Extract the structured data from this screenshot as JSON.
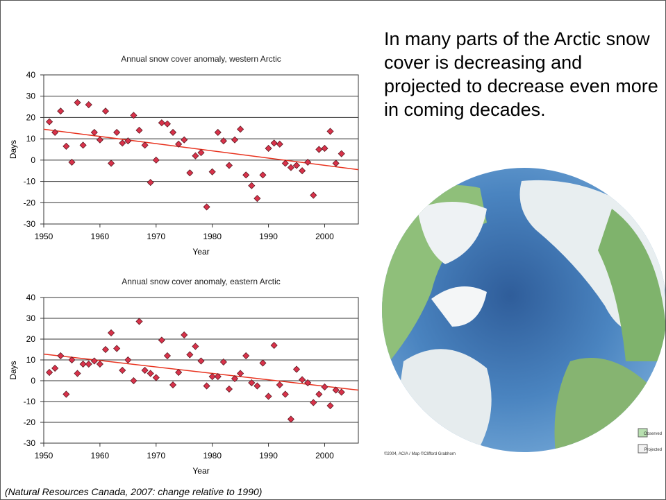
{
  "chart_data": [
    {
      "type": "scatter",
      "title": "Annual snow cover anomaly, western Arctic",
      "x_label": "Year",
      "y_label": "Days",
      "color": "#d9324a",
      "grid": true,
      "x": [
        1951,
        1952,
        1953,
        1954,
        1955,
        1956,
        1957,
        1958,
        1959,
        1960,
        1961,
        1962,
        1963,
        1964,
        1965,
        1966,
        1967,
        1968,
        1969,
        1970,
        1971,
        1972,
        1973,
        1974,
        1975,
        1976,
        1977,
        1978,
        1979,
        1980,
        1981,
        1982,
        1983,
        1984,
        1985,
        1986,
        1987,
        1988,
        1989,
        1990,
        1991,
        1992,
        1993,
        1994,
        1995,
        1996,
        1997,
        1998,
        1999,
        2000,
        2001,
        2002,
        2003
      ],
      "values": [
        18,
        13,
        23,
        6.5,
        -1,
        27,
        7,
        26,
        13,
        9.5,
        23,
        -1.5,
        13,
        8,
        9,
        21,
        14,
        7,
        -10.5,
        0,
        17.5,
        17,
        13,
        7.5,
        9.5,
        -6,
        2,
        3.5,
        -22,
        -5.5,
        13,
        9,
        -2.5,
        9.5,
        14.5,
        -7,
        -12,
        -18,
        -7,
        5.5,
        8,
        7.5,
        -1.5,
        -3.5,
        -2.5,
        -5,
        -1,
        -16.5,
        5,
        5.5,
        13.5,
        -1.5,
        3
      ],
      "trend": {
        "x": [
          1950,
          2006
        ],
        "values": [
          14.5,
          -4.5
        ],
        "color": "#e8321e"
      },
      "xlim": [
        1950,
        2006
      ],
      "ylim": [
        -30,
        40
      ],
      "xticks": [
        1950,
        1960,
        1970,
        1980,
        1990,
        2000
      ],
      "yticks": [
        -30,
        -20,
        -10,
        0,
        10,
        20,
        30,
        40
      ]
    },
    {
      "type": "scatter",
      "title": "Annual snow cover anomaly, eastern Arctic",
      "x_label": "Year",
      "y_label": "Days",
      "color": "#d9324a",
      "grid": true,
      "x": [
        1951,
        1952,
        1953,
        1954,
        1955,
        1956,
        1957,
        1958,
        1959,
        1960,
        1961,
        1962,
        1963,
        1964,
        1965,
        1966,
        1967,
        1968,
        1969,
        1970,
        1971,
        1972,
        1973,
        1974,
        1975,
        1976,
        1977,
        1978,
        1979,
        1980,
        1981,
        1982,
        1983,
        1984,
        1985,
        1986,
        1987,
        1988,
        1989,
        1990,
        1991,
        1992,
        1993,
        1994,
        1995,
        1996,
        1997,
        1998,
        1999,
        2000,
        2001,
        2002,
        2003
      ],
      "values": [
        4,
        6,
        12,
        -6.5,
        10,
        3.5,
        8,
        8,
        9.5,
        8,
        15,
        23,
        15.5,
        5,
        10,
        0,
        28.5,
        5,
        3.5,
        1.5,
        19.5,
        12,
        -2,
        4,
        22,
        12.5,
        16.5,
        9.5,
        -2.5,
        2,
        2,
        9,
        -4,
        1,
        3.5,
        12,
        -1,
        -2.5,
        8.5,
        -7.5,
        17,
        -2,
        -6.5,
        -18.5,
        5.5,
        0.5,
        -1,
        -10.5,
        -6.5,
        -3,
        -12,
        -4.5,
        -5.5
      ],
      "trend": {
        "x": [
          1950,
          2006
        ],
        "values": [
          12.8,
          -4.5
        ],
        "color": "#e8321e"
      },
      "xlim": [
        1950,
        2006
      ],
      "ylim": [
        -30,
        40
      ],
      "xticks": [
        1950,
        1960,
        1970,
        1980,
        1990,
        2000
      ],
      "yticks": [
        -30,
        -20,
        -10,
        0,
        10,
        20,
        30,
        40
      ]
    }
  ],
  "slide_text": "In many parts of the Arctic snow cover is decreasing and projected to decrease even more in coming decades.",
  "caption": "(Natural Resources Canada, 2007: change relative to 1990)",
  "map": {
    "credit": "©2004, ACIA / Map ©Clifford Grabhorn",
    "legend": [
      "Observed",
      "Projected"
    ]
  }
}
